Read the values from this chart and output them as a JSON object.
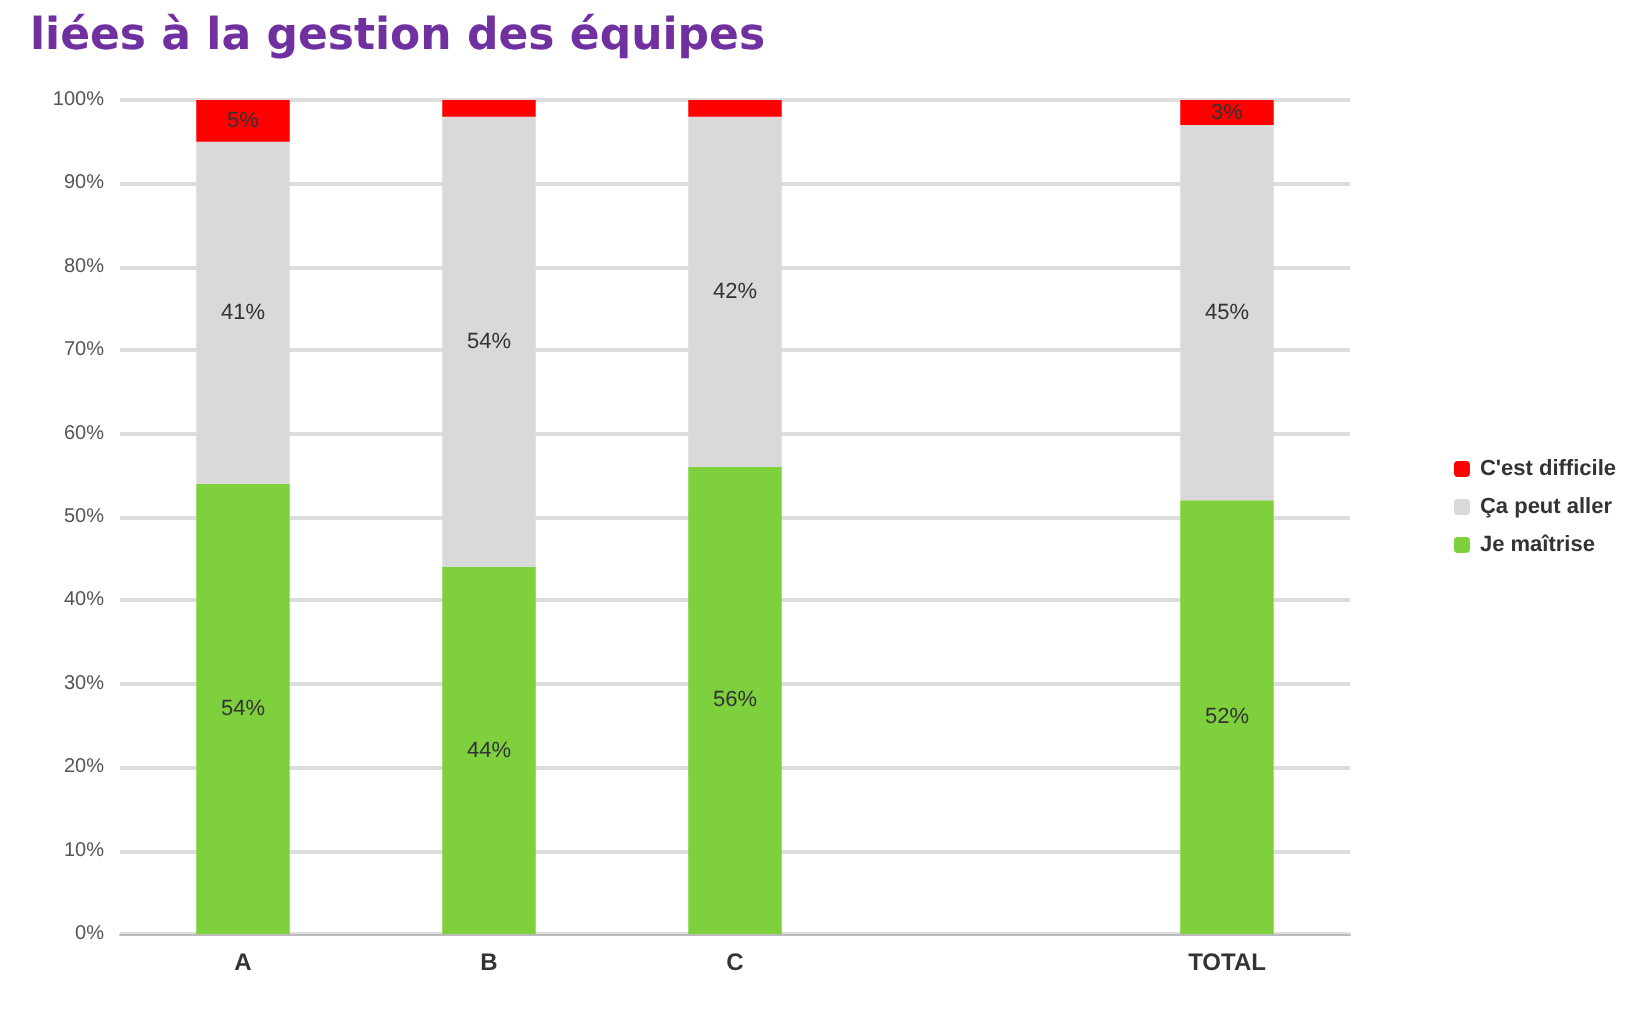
{
  "chart_data": {
    "type": "bar",
    "stacked": true,
    "title": "liées à la gestion des équipes",
    "categories": [
      "A",
      "B",
      "C",
      null,
      "TOTAL"
    ],
    "series": [
      {
        "name": "Je maîtrise",
        "color": "#7ed03c",
        "values": [
          54,
          44,
          56,
          null,
          52
        ],
        "value_labels": [
          "54%",
          "44%",
          "56%",
          null,
          "52%"
        ]
      },
      {
        "name": "Ça peut aller",
        "color": "#d9d9d9",
        "values": [
          41,
          54,
          42,
          null,
          45
        ],
        "value_labels": [
          "41%",
          "54%",
          "42%",
          null,
          "45%"
        ]
      },
      {
        "name": "C'est difficile",
        "color": "#ff0000",
        "values": [
          5,
          2,
          2,
          null,
          3
        ],
        "value_labels": [
          "5%",
          null,
          null,
          null,
          "3%"
        ]
      }
    ],
    "ylim": [
      0,
      100
    ],
    "yticks": [
      {
        "value": 0,
        "label": "0%"
      },
      {
        "value": 10,
        "label": "10%"
      },
      {
        "value": 20,
        "label": "20%"
      },
      {
        "value": 30,
        "label": "30%"
      },
      {
        "value": 40,
        "label": "40%"
      },
      {
        "value": 50,
        "label": "50%"
      },
      {
        "value": 60,
        "label": "60%"
      },
      {
        "value": 70,
        "label": "70%"
      },
      {
        "value": 80,
        "label": "80%"
      },
      {
        "value": 90,
        "label": "90%"
      },
      {
        "value": 100,
        "label": "100%"
      }
    ],
    "grid": "y",
    "legend": "right"
  }
}
